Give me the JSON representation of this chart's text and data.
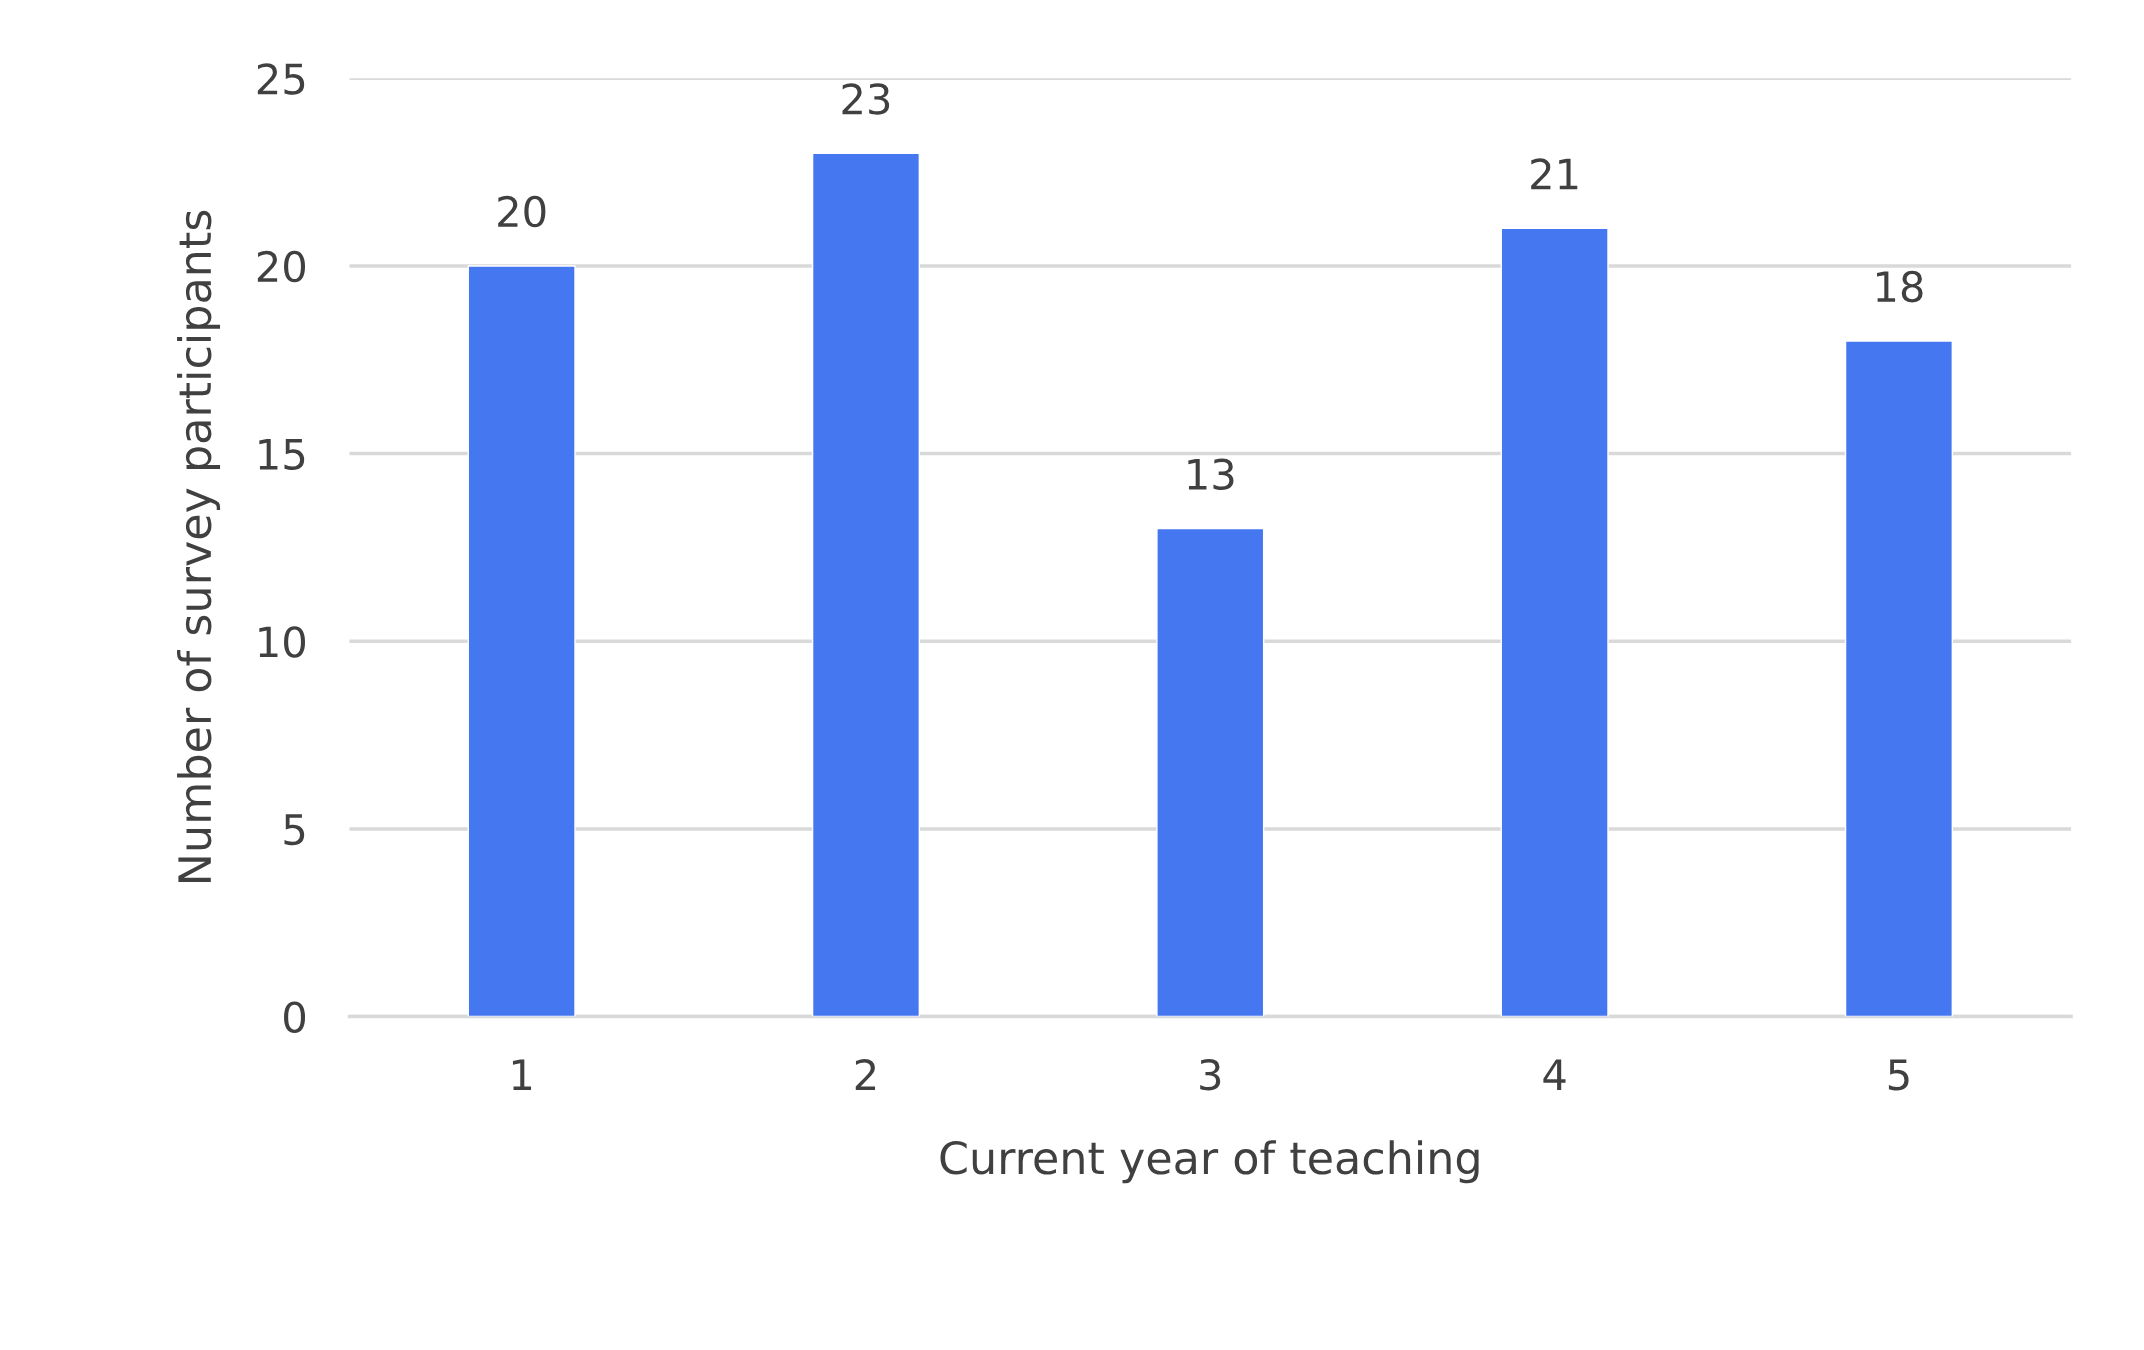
{
  "chart_data": {
    "type": "bar",
    "xlabel": "Current year of teaching",
    "ylabel": "Number of survey participants",
    "categories": [
      "1",
      "2",
      "3",
      "4",
      "5"
    ],
    "values": [
      20,
      23,
      13,
      21,
      18
    ],
    "color": "#4477f0",
    "ylim": [
      0,
      25
    ],
    "yticks": [
      0,
      5,
      10,
      15,
      20,
      25
    ],
    "grid": "y",
    "data_labels": true
  }
}
